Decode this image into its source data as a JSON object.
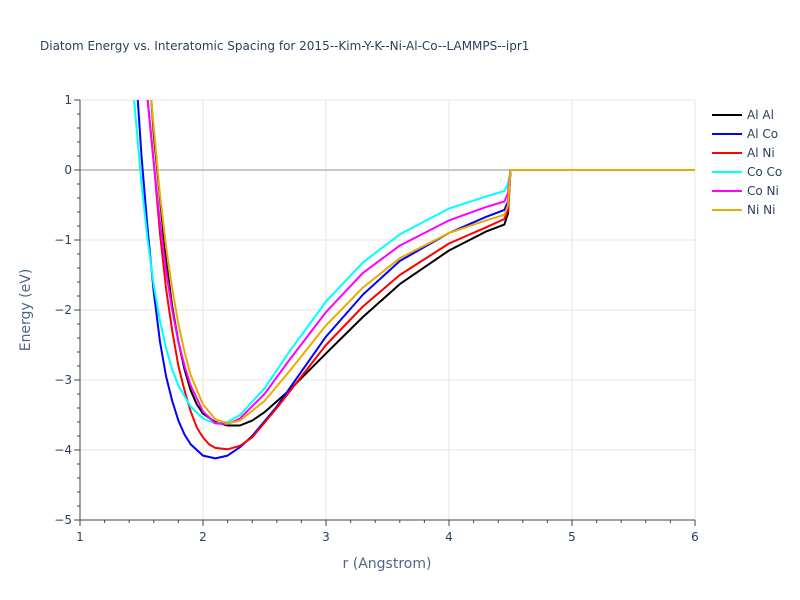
{
  "chart_data": {
    "type": "line",
    "title": "Diatom Energy vs. Interatomic Spacing for 2015--Kim-Y-K--Ni-Al-Co--LAMMPS--ipr1",
    "xlabel": "r (Angstrom)",
    "ylabel": "Energy (eV)",
    "xlim": [
      1,
      6
    ],
    "ylim": [
      -5,
      1
    ],
    "xticks": [
      "1",
      "2",
      "3",
      "4",
      "5",
      "6"
    ],
    "yticks": [
      "−5",
      "−4",
      "−3",
      "−2",
      "−1",
      "0",
      "1"
    ],
    "grid": true,
    "legend": "top-right",
    "series": [
      {
        "name": "Al Al",
        "color": "#000000",
        "x": [
          1.58,
          1.6,
          1.65,
          1.7,
          1.75,
          1.8,
          1.85,
          1.9,
          1.95,
          2.0,
          2.1,
          2.2,
          2.3,
          2.4,
          2.5,
          2.7,
          3.0,
          3.3,
          3.6,
          4.0,
          4.3,
          4.45,
          4.48,
          4.5,
          6.0
        ],
        "y": [
          1.0,
          0.5,
          -0.4,
          -1.3,
          -1.95,
          -2.45,
          -2.85,
          -3.15,
          -3.35,
          -3.48,
          -3.6,
          -3.65,
          -3.65,
          -3.58,
          -3.46,
          -3.15,
          -2.62,
          -2.1,
          -1.63,
          -1.15,
          -0.88,
          -0.78,
          -0.62,
          0.0,
          0.0
        ]
      },
      {
        "name": "Al Co",
        "color": "#0000ff",
        "x": [
          1.47,
          1.5,
          1.55,
          1.6,
          1.65,
          1.7,
          1.75,
          1.8,
          1.85,
          1.9,
          2.0,
          2.1,
          2.2,
          2.3,
          2.4,
          2.6,
          3.0,
          3.3,
          3.6,
          4.0,
          4.3,
          4.45,
          4.48,
          4.5,
          6.0
        ],
        "y": [
          1.0,
          0.2,
          -0.85,
          -1.75,
          -2.45,
          -2.95,
          -3.3,
          -3.58,
          -3.78,
          -3.92,
          -4.08,
          -4.12,
          -4.08,
          -3.96,
          -3.8,
          -3.38,
          -2.38,
          -1.78,
          -1.3,
          -0.9,
          -0.67,
          -0.57,
          -0.45,
          0.0,
          0.0
        ]
      },
      {
        "name": "Al Ni",
        "color": "#ff0000",
        "x": [
          1.55,
          1.6,
          1.65,
          1.7,
          1.75,
          1.8,
          1.85,
          1.9,
          1.95,
          2.0,
          2.05,
          2.1,
          2.2,
          2.3,
          2.4,
          2.6,
          3.0,
          3.3,
          3.6,
          4.0,
          4.3,
          4.45,
          4.48,
          4.5,
          6.0
        ],
        "y": [
          1.0,
          0.1,
          -0.9,
          -1.7,
          -2.3,
          -2.8,
          -3.15,
          -3.45,
          -3.68,
          -3.82,
          -3.92,
          -3.97,
          -3.99,
          -3.94,
          -3.82,
          -3.4,
          -2.5,
          -1.95,
          -1.5,
          -1.05,
          -0.82,
          -0.7,
          -0.57,
          0.0,
          0.0
        ]
      },
      {
        "name": "Co Co",
        "color": "#00ffff",
        "x": [
          1.44,
          1.5,
          1.55,
          1.6,
          1.65,
          1.7,
          1.75,
          1.8,
          1.9,
          2.0,
          2.1,
          2.2,
          2.3,
          2.5,
          2.7,
          3.0,
          3.3,
          3.6,
          4.0,
          4.3,
          4.45,
          4.48,
          4.5,
          6.0
        ],
        "y": [
          1.0,
          -0.2,
          -1.0,
          -1.65,
          -2.15,
          -2.55,
          -2.85,
          -3.08,
          -3.38,
          -3.55,
          -3.62,
          -3.6,
          -3.5,
          -3.12,
          -2.6,
          -1.88,
          -1.32,
          -0.92,
          -0.55,
          -0.38,
          -0.3,
          -0.2,
          0.0,
          0.0
        ]
      },
      {
        "name": "Co Ni",
        "color": "#ff00ff",
        "x": [
          1.55,
          1.6,
          1.65,
          1.7,
          1.75,
          1.8,
          1.85,
          1.9,
          2.0,
          2.1,
          2.2,
          2.3,
          2.5,
          2.7,
          3.0,
          3.3,
          3.6,
          4.0,
          4.3,
          4.45,
          4.48,
          4.5,
          6.0
        ],
        "y": [
          1.0,
          0.1,
          -0.75,
          -1.45,
          -2.0,
          -2.45,
          -2.8,
          -3.08,
          -3.45,
          -3.62,
          -3.63,
          -3.55,
          -3.2,
          -2.72,
          -2.03,
          -1.47,
          -1.08,
          -0.72,
          -0.53,
          -0.45,
          -0.33,
          0.0,
          0.0
        ]
      },
      {
        "name": "Ni Ni",
        "color": "#e6ac00",
        "x": [
          1.58,
          1.6,
          1.65,
          1.7,
          1.75,
          1.8,
          1.85,
          1.9,
          2.0,
          2.1,
          2.2,
          2.3,
          2.5,
          2.7,
          3.0,
          3.3,
          3.6,
          4.0,
          4.3,
          4.45,
          4.48,
          4.5,
          6.0
        ],
        "y": [
          1.0,
          0.6,
          -0.35,
          -1.1,
          -1.7,
          -2.2,
          -2.6,
          -2.93,
          -3.35,
          -3.56,
          -3.62,
          -3.58,
          -3.3,
          -2.88,
          -2.22,
          -1.68,
          -1.26,
          -0.9,
          -0.72,
          -0.64,
          -0.5,
          0.0,
          0.0
        ]
      }
    ]
  }
}
